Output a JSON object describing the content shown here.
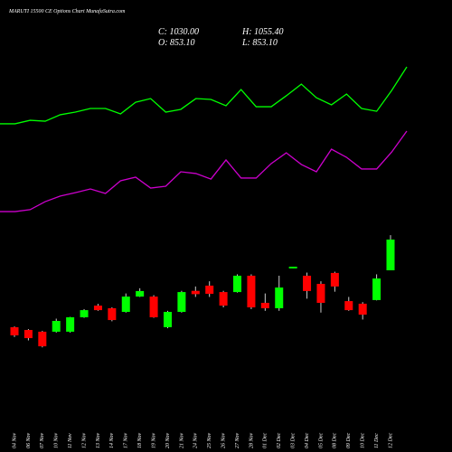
{
  "chart_data": {
    "type": "candlestick",
    "title": "MARUTI 15500 CE Options Chart MunafaSutra.com",
    "summary": {
      "close_label": "C: 1030.00",
      "high_label": "H: 1055.40",
      "open_label": "O: 853.10",
      "low_label": "L: 853.10"
    },
    "categories": [
      "04 Nov",
      "06 Nov",
      "07 Nov",
      "10 Nov",
      "11 Nov",
      "12 Nov",
      "13 Nov",
      "14 Nov",
      "17 Nov",
      "18 Nov",
      "19 Nov",
      "20 Nov",
      "21 Nov",
      "24 Nov",
      "25 Nov",
      "26 Nov",
      "27 Nov",
      "28 Nov",
      "01 Dec",
      "02 Dec",
      "03 Dec",
      "04 Dec",
      "05 Dec",
      "08 Dec",
      "09 Dec",
      "10 Dec",
      "11 Dec",
      "12 Dec"
    ],
    "open": [
      526,
      510,
      500,
      500,
      500,
      583,
      650,
      635,
      614,
      702,
      702,
      526,
      614,
      735,
      765,
      728,
      728,
      822,
      666,
      635,
      864,
      822,
      775,
      838,
      676,
      661,
      682,
      853.1
    ],
    "high": [
      530,
      515,
      505,
      575,
      585,
      630,
      660,
      640,
      720,
      750,
      710,
      620,
      735,
      760,
      790,
      735,
      830,
      830,
      720,
      822,
      874,
      840,
      790,
      845,
      700,
      670,
      830,
      1055.4
    ],
    "low": [
      470,
      450,
      410,
      495,
      495,
      580,
      620,
      560,
      610,
      700,
      580,
      520,
      610,
      700,
      700,
      640,
      725,
      630,
      620,
      620,
      864,
      690,
      610,
      730,
      620,
      570,
      680,
      853.1
    ],
    "close": [
      479,
      463,
      416,
      562,
      583,
      624,
      624,
      567,
      702,
      734,
      583,
      614,
      728,
      716,
      718,
      650,
      822,
      640,
      635,
      754,
      874,
      734,
      666,
      760,
      624,
      598,
      806,
      1030
    ],
    "up_color": "#00ff00",
    "down_color": "#ff0000",
    "series": [
      {
        "color": "#00ff00",
        "values": [
          1696,
          1696,
          1716,
          1711,
          1748,
          1763,
          1784,
          1784,
          1753,
          1820,
          1841,
          1763,
          1779,
          1841,
          1836,
          1800,
          1893,
          1794,
          1794,
          1857,
          1924,
          1846,
          1805,
          1867,
          1784,
          1768,
          1888,
          2023
        ]
      },
      {
        "color": "#cc00cc",
        "values": [
          1191,
          1191,
          1202,
          1248,
          1280,
          1300,
          1321,
          1295,
          1368,
          1389,
          1326,
          1337,
          1420,
          1410,
          1378,
          1488,
          1384,
          1384,
          1467,
          1529,
          1462,
          1420,
          1550,
          1503,
          1436,
          1436,
          1534,
          1654
        ]
      }
    ],
    "ylim": [
      -192,
      2408
    ]
  }
}
